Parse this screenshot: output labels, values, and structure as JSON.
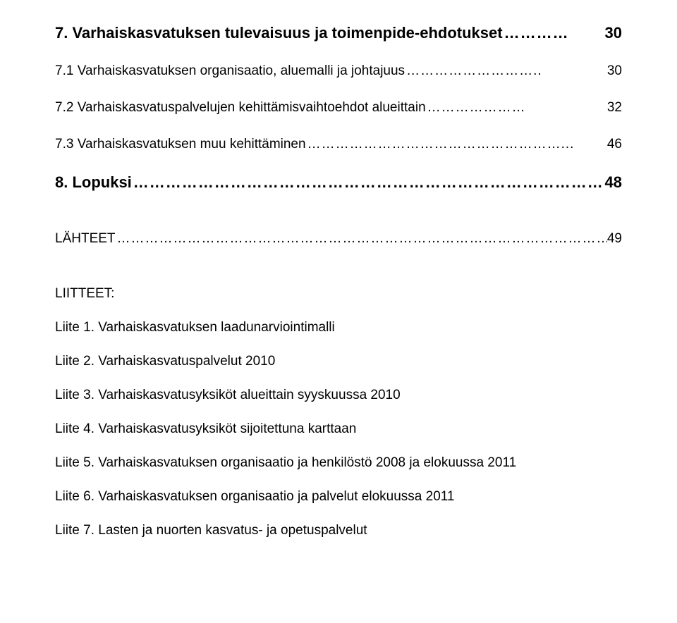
{
  "toc": {
    "s7": {
      "label": "7. Varhaiskasvatuksen tulevaisuus ja toimenpide-ehdotukset",
      "leader": "…………",
      "page": "30"
    },
    "s7_1": {
      "label": "7.1 Varhaiskasvatuksen organisaatio, aluemalli ja johtajuus",
      "leader": "………………………..",
      "page": "30"
    },
    "s7_2": {
      "label": "7.2 Varhaiskasvatuspalvelujen kehittämisvaihtoehdot alueittain",
      "leader": "…………………",
      "page": "32"
    },
    "s7_3": {
      "label": "7.3 Varhaiskasvatuksen muu kehittäminen",
      "leader": "………………………………………………...",
      "page": "46"
    },
    "s8": {
      "label": "8. Lopuksi",
      "leader": "……………………………………………………………………………………...",
      "page": "48"
    },
    "lahteet": {
      "label": "LÄHTEET",
      "leader": "……………………………………………………………………………………………….",
      "page": "49"
    }
  },
  "liitteet": {
    "header": "LIITTEET:",
    "items": [
      "Liite 1. Varhaiskasvatuksen laadunarviointimalli",
      "Liite 2. Varhaiskasvatuspalvelut 2010",
      "Liite 3. Varhaiskasvatusyksiköt alueittain syyskuussa 2010",
      "Liite 4. Varhaiskasvatusyksiköt sijoitettuna karttaan",
      "Liite 5. Varhaiskasvatuksen organisaatio ja henkilöstö 2008 ja elokuussa 2011",
      "Liite 6. Varhaiskasvatuksen organisaatio ja palvelut elokuussa 2011",
      "Liite 7. Lasten ja nuorten kasvatus- ja opetuspalvelut"
    ]
  }
}
